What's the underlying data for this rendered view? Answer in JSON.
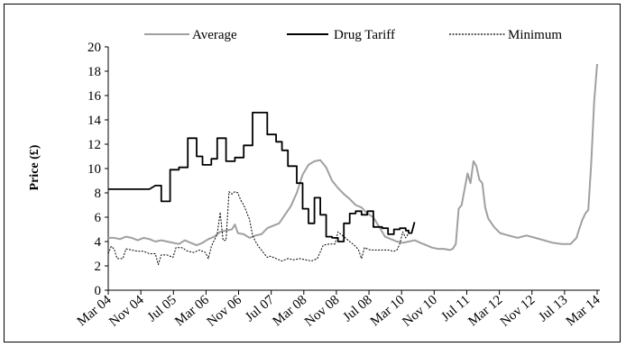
{
  "chart_data": {
    "type": "line",
    "title": "",
    "xlabel": "",
    "ylabel": "Price (£)",
    "ylim": [
      0,
      20
    ],
    "yticks": [
      0,
      2,
      4,
      6,
      8,
      10,
      12,
      14,
      16,
      18,
      20
    ],
    "grid": false,
    "legend_position": "top",
    "x_tick_labels": [
      "Mar 04",
      "Nov 04",
      "Jul 05",
      "Mar 06",
      "Nov 06",
      "Jul 07",
      "Mar 08",
      "Nov 08",
      "Jul 08",
      "Mar 10",
      "Nov 10",
      "Jul 11",
      "Mar 12",
      "Nov 12",
      "Jul 13",
      "Mar 14"
    ],
    "series": [
      {
        "name": "Average",
        "color": "#a0a0a0",
        "style": "solid",
        "points": [
          [
            0,
            4.3
          ],
          [
            2,
            4.3
          ],
          [
            4,
            4.2
          ],
          [
            6,
            4.4
          ],
          [
            8,
            4.3
          ],
          [
            10,
            4.1
          ],
          [
            12,
            4.3
          ],
          [
            14,
            4.2
          ],
          [
            16,
            4.0
          ],
          [
            18,
            4.1
          ],
          [
            20,
            4.0
          ],
          [
            22,
            3.9
          ],
          [
            24,
            3.8
          ],
          [
            26,
            4.1
          ],
          [
            28,
            3.9
          ],
          [
            30,
            3.7
          ],
          [
            32,
            3.9
          ],
          [
            34,
            4.2
          ],
          [
            36,
            4.4
          ],
          [
            38,
            4.8
          ],
          [
            40,
            4.9
          ],
          [
            42,
            5.0
          ],
          [
            43,
            5.4
          ],
          [
            44,
            4.7
          ],
          [
            46,
            4.6
          ],
          [
            48,
            4.3
          ],
          [
            50,
            4.5
          ],
          [
            52,
            4.6
          ],
          [
            54,
            5.1
          ],
          [
            56,
            5.3
          ],
          [
            58,
            5.5
          ],
          [
            60,
            6.2
          ],
          [
            62,
            6.9
          ],
          [
            64,
            8.0
          ],
          [
            66,
            9.5
          ],
          [
            68,
            10.3
          ],
          [
            70,
            10.6
          ],
          [
            72,
            10.7
          ],
          [
            74,
            10.1
          ],
          [
            76,
            9.0
          ],
          [
            78,
            8.4
          ],
          [
            80,
            7.9
          ],
          [
            82,
            7.5
          ],
          [
            84,
            7.0
          ],
          [
            86,
            6.8
          ],
          [
            88,
            6.3
          ],
          [
            90,
            6.0
          ],
          [
            92,
            5.2
          ],
          [
            94,
            4.4
          ],
          [
            96,
            4.2
          ],
          [
            98,
            4.0
          ],
          [
            100,
            3.9
          ],
          [
            102,
            4.0
          ],
          [
            104,
            4.1
          ],
          [
            106,
            3.9
          ],
          [
            108,
            3.7
          ],
          [
            110,
            3.5
          ],
          [
            112,
            3.4
          ],
          [
            114,
            3.4
          ],
          [
            116,
            3.3
          ],
          [
            117,
            3.4
          ],
          [
            118,
            3.8
          ],
          [
            119,
            6.7
          ],
          [
            120,
            7.0
          ],
          [
            122,
            9.6
          ],
          [
            123,
            8.8
          ],
          [
            124,
            10.6
          ],
          [
            125,
            10.2
          ],
          [
            126,
            9.1
          ],
          [
            127,
            8.8
          ],
          [
            128,
            6.8
          ],
          [
            129,
            5.9
          ],
          [
            131,
            5.2
          ],
          [
            133,
            4.7
          ],
          [
            136,
            4.5
          ],
          [
            139,
            4.3
          ],
          [
            142,
            4.5
          ],
          [
            145,
            4.3
          ],
          [
            148,
            4.1
          ],
          [
            151,
            3.9
          ],
          [
            154,
            3.8
          ],
          [
            157,
            3.8
          ],
          [
            159,
            4.3
          ],
          [
            160,
            5.1
          ],
          [
            161,
            5.8
          ],
          [
            162,
            6.3
          ],
          [
            163,
            6.6
          ],
          [
            164,
            10.5
          ],
          [
            165,
            15.5
          ],
          [
            166,
            18.6
          ]
        ]
      },
      {
        "name": "Drug Tariff",
        "color": "#000000",
        "style": "solid",
        "points": [
          [
            0,
            8.3
          ],
          [
            14,
            8.3
          ],
          [
            16,
            8.6
          ],
          [
            18,
            8.6
          ],
          [
            18,
            7.3
          ],
          [
            21,
            7.3
          ],
          [
            21,
            9.9
          ],
          [
            24,
            9.9
          ],
          [
            24,
            10.1
          ],
          [
            27,
            10.1
          ],
          [
            27,
            12.5
          ],
          [
            30,
            12.5
          ],
          [
            30,
            11.0
          ],
          [
            32,
            11.0
          ],
          [
            32,
            10.3
          ],
          [
            35,
            10.3
          ],
          [
            35,
            10.8
          ],
          [
            37,
            10.8
          ],
          [
            37,
            12.5
          ],
          [
            40,
            12.5
          ],
          [
            40,
            10.6
          ],
          [
            43,
            10.6
          ],
          [
            43,
            10.9
          ],
          [
            46,
            10.9
          ],
          [
            46,
            11.9
          ],
          [
            49,
            11.9
          ],
          [
            49,
            14.6
          ],
          [
            54,
            14.6
          ],
          [
            54,
            12.8
          ],
          [
            57,
            12.8
          ],
          [
            57,
            12.2
          ],
          [
            59,
            12.2
          ],
          [
            59,
            11.5
          ],
          [
            61,
            11.5
          ],
          [
            61,
            10.2
          ],
          [
            64,
            10.2
          ],
          [
            64,
            8.8
          ],
          [
            66,
            8.8
          ],
          [
            66,
            6.7
          ],
          [
            68,
            6.7
          ],
          [
            68,
            5.5
          ],
          [
            70,
            5.5
          ],
          [
            70,
            7.6
          ],
          [
            72,
            7.6
          ],
          [
            72,
            6.2
          ],
          [
            74,
            6.2
          ],
          [
            74,
            4.4
          ],
          [
            76,
            4.4
          ],
          [
            76,
            4.3
          ],
          [
            78,
            4.3
          ],
          [
            78,
            4.0
          ],
          [
            80,
            4.0
          ],
          [
            80,
            5.5
          ],
          [
            82,
            5.5
          ],
          [
            82,
            6.3
          ],
          [
            84,
            6.3
          ],
          [
            84,
            6.5
          ],
          [
            86,
            6.5
          ],
          [
            86,
            6.2
          ],
          [
            88,
            6.2
          ],
          [
            88,
            6.5
          ],
          [
            90,
            6.5
          ],
          [
            90,
            5.2
          ],
          [
            93,
            5.2
          ],
          [
            93,
            5.1
          ],
          [
            95,
            5.1
          ],
          [
            95,
            4.6
          ],
          [
            97,
            4.6
          ],
          [
            97,
            5.0
          ],
          [
            99,
            5.0
          ],
          [
            99,
            5.1
          ],
          [
            101,
            5.1
          ],
          [
            101,
            4.9
          ],
          [
            102,
            4.9
          ],
          [
            102,
            4.7
          ],
          [
            103,
            4.7
          ],
          [
            103,
            4.7
          ],
          [
            104,
            5.6
          ]
        ]
      },
      {
        "name": "Minimum",
        "color": "#000000",
        "style": "dotted",
        "points": [
          [
            0,
            3.0
          ],
          [
            1,
            3.6
          ],
          [
            2,
            3.4
          ],
          [
            3,
            2.6
          ],
          [
            5,
            2.6
          ],
          [
            6,
            3.4
          ],
          [
            8,
            3.3
          ],
          [
            10,
            3.2
          ],
          [
            12,
            3.2
          ],
          [
            14,
            3.0
          ],
          [
            16,
            3.0
          ],
          [
            17,
            2.1
          ],
          [
            18,
            2.9
          ],
          [
            20,
            2.9
          ],
          [
            22,
            2.7
          ],
          [
            23,
            3.5
          ],
          [
            25,
            3.5
          ],
          [
            27,
            3.2
          ],
          [
            29,
            3.1
          ],
          [
            31,
            3.3
          ],
          [
            33,
            3.1
          ],
          [
            34,
            2.6
          ],
          [
            35,
            3.6
          ],
          [
            36,
            4.1
          ],
          [
            37,
            4.6
          ],
          [
            38,
            6.4
          ],
          [
            39,
            4.1
          ],
          [
            40,
            4.1
          ],
          [
            41,
            8.1
          ],
          [
            42,
            7.9
          ],
          [
            43,
            8.1
          ],
          [
            44,
            8.0
          ],
          [
            45,
            7.4
          ],
          [
            46,
            7.0
          ],
          [
            47,
            6.4
          ],
          [
            48,
            5.8
          ],
          [
            49,
            4.5
          ],
          [
            50,
            4.0
          ],
          [
            51,
            3.6
          ],
          [
            52,
            3.3
          ],
          [
            53,
            3.0
          ],
          [
            54,
            2.7
          ],
          [
            55,
            2.8
          ],
          [
            57,
            2.6
          ],
          [
            59,
            2.4
          ],
          [
            61,
            2.6
          ],
          [
            63,
            2.5
          ],
          [
            65,
            2.6
          ],
          [
            67,
            2.5
          ],
          [
            69,
            2.4
          ],
          [
            71,
            2.6
          ],
          [
            73,
            3.7
          ],
          [
            75,
            3.8
          ],
          [
            77,
            3.8
          ],
          [
            78,
            4.8
          ],
          [
            80,
            4.4
          ],
          [
            82,
            4.0
          ],
          [
            84,
            3.6
          ],
          [
            85,
            3.3
          ],
          [
            86,
            2.6
          ],
          [
            87,
            3.5
          ],
          [
            89,
            3.3
          ],
          [
            91,
            3.3
          ],
          [
            93,
            3.3
          ],
          [
            95,
            3.3
          ],
          [
            97,
            3.2
          ],
          [
            98,
            3.3
          ],
          [
            99,
            3.8
          ],
          [
            100,
            4.8
          ],
          [
            101,
            4.3
          ],
          [
            102,
            4.7
          ],
          [
            103,
            4.7
          ]
        ]
      }
    ]
  }
}
